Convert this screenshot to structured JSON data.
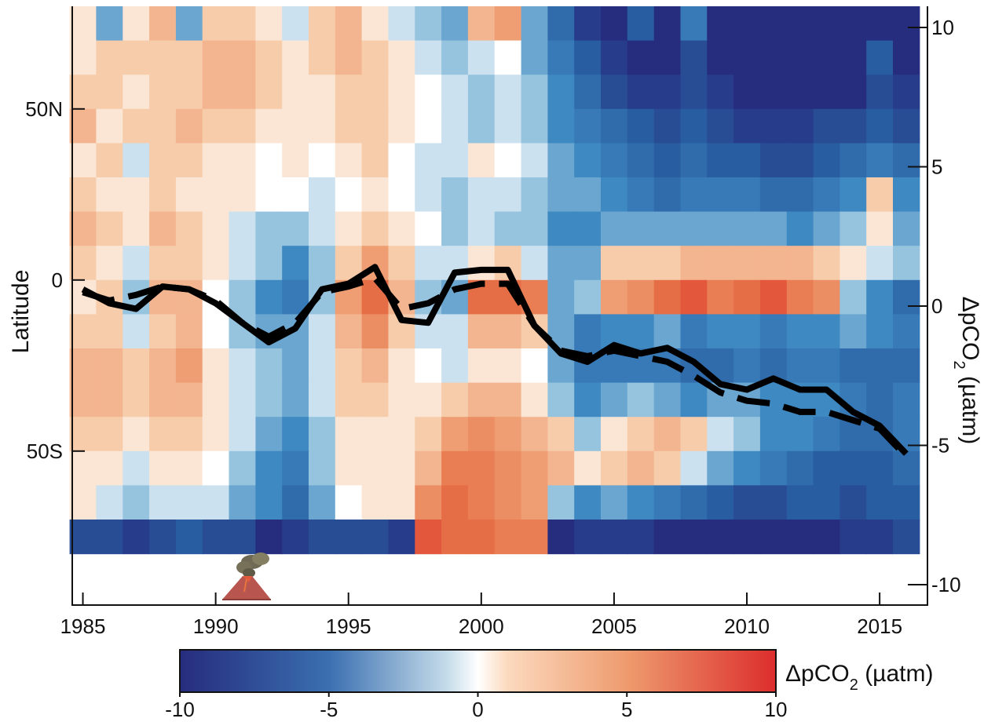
{
  "chart_data": {
    "type": "heatmap",
    "title": "",
    "heatmap": {
      "years": [
        1985,
        1986,
        1987,
        1988,
        1989,
        1990,
        1991,
        1992,
        1993,
        1994,
        1995,
        1996,
        1997,
        1998,
        1999,
        2000,
        2001,
        2002,
        2003,
        2004,
        2005,
        2006,
        2007,
        2008,
        2009,
        2010,
        2011,
        2012,
        2013,
        2014,
        2015,
        2016
      ],
      "lat_bands": [
        "70N-80N",
        "60N-70N",
        "50N-60N",
        "40N-50N",
        "30N-40N",
        "20N-30N",
        "10N-20N",
        "0-10N",
        "10S-0",
        "20S-10S",
        "30S-20S",
        "40S-30S",
        "50S-40S",
        "60S-50S",
        "70S-60S",
        "80S-70S"
      ],
      "note_value_range": [
        -10,
        10
      ],
      "values": [
        [
          1,
          -3,
          1,
          3,
          -3,
          2,
          2,
          1,
          -1,
          2,
          3,
          1,
          -1,
          -2,
          -3,
          3,
          4,
          -3,
          -6,
          -9,
          -10,
          -7,
          -10,
          -5,
          -10,
          -10,
          -10,
          -10,
          -10,
          -10,
          -10,
          -10
        ],
        [
          1,
          2,
          2,
          2,
          2,
          3,
          3,
          2,
          1,
          2,
          3,
          2,
          1,
          -1,
          -2,
          -1,
          0,
          -3,
          -5,
          -7,
          -9,
          -10,
          -10,
          -8,
          -10,
          -10,
          -10,
          -10,
          -10,
          -10,
          -7,
          -10
        ],
        [
          2,
          2,
          1,
          2,
          2,
          3,
          3,
          2,
          1,
          1,
          2,
          2,
          1,
          0,
          -1,
          -2,
          -1,
          -2,
          -4,
          -6,
          -8,
          -9,
          -9,
          -8,
          -9,
          -10,
          -10,
          -10,
          -10,
          -10,
          -8,
          -9
        ],
        [
          3,
          1,
          2,
          2,
          3,
          2,
          2,
          1,
          1,
          1,
          2,
          2,
          1,
          0,
          -1,
          -2,
          -1,
          -2,
          -4,
          -5,
          -6,
          -7,
          -8,
          -7,
          -8,
          -9,
          -9,
          -9,
          -8,
          -8,
          -7,
          -8
        ],
        [
          1,
          2,
          -1,
          2,
          2,
          1,
          1,
          0,
          1,
          0,
          1,
          2,
          0,
          -1,
          -1,
          1,
          0,
          -1,
          -3,
          -4,
          -5,
          -6,
          -7,
          -6,
          -7,
          -7,
          -8,
          -8,
          -7,
          -6,
          -5,
          -6
        ],
        [
          2,
          1,
          1,
          2,
          1,
          1,
          1,
          0,
          0,
          -1,
          0,
          1,
          0,
          -1,
          -2,
          -1,
          -1,
          -2,
          -3,
          -3,
          -4,
          -5,
          -6,
          -5,
          -5,
          -5,
          -6,
          -6,
          -5,
          -4,
          2,
          -4
        ],
        [
          3,
          2,
          1,
          3,
          2,
          1,
          -1,
          -2,
          -2,
          -1,
          1,
          2,
          1,
          0,
          -2,
          -1,
          -2,
          -2,
          -4,
          -4,
          -3,
          -3,
          -3,
          -3,
          -3,
          -3,
          -3,
          -4,
          -3,
          -2,
          1,
          -3
        ],
        [
          2,
          1,
          -1,
          2,
          2,
          1,
          -1,
          -2,
          -4,
          -2,
          2,
          4,
          2,
          -1,
          -1,
          1,
          2,
          -1,
          -3,
          -3,
          2,
          2,
          2,
          3,
          3,
          3,
          3,
          3,
          2,
          1,
          -1,
          -2
        ],
        [
          1,
          2,
          -2,
          3,
          3,
          0,
          -2,
          -4,
          -5,
          -2,
          4,
          7,
          3,
          -2,
          -3,
          7,
          7,
          6,
          -3,
          -2,
          4,
          5,
          7,
          8,
          6,
          7,
          8,
          6,
          5,
          -2,
          -4,
          -6
        ],
        [
          2,
          2,
          -1,
          2,
          3,
          0,
          -2,
          -3,
          -3,
          -1,
          3,
          5,
          2,
          -1,
          -1,
          3,
          3,
          2,
          -3,
          -5,
          -4,
          -4,
          -3,
          -5,
          -4,
          -4,
          -5,
          -4,
          -4,
          -3,
          -4,
          -5
        ],
        [
          3,
          3,
          2,
          3,
          4,
          1,
          -1,
          -2,
          -3,
          -1,
          2,
          3,
          1,
          0,
          -1,
          1,
          1,
          0,
          -3,
          -5,
          -5,
          -5,
          -5,
          -6,
          -6,
          -5,
          -6,
          -5,
          -5,
          -6,
          -6,
          -6
        ],
        [
          3,
          3,
          2,
          3,
          3,
          1,
          -1,
          -2,
          -3,
          -1,
          2,
          2,
          1,
          1,
          2,
          3,
          3,
          1,
          -2,
          -4,
          -3,
          -2,
          -3,
          -4,
          -3,
          -3,
          -4,
          -4,
          -4,
          -5,
          -6,
          -5
        ],
        [
          2,
          2,
          1,
          2,
          2,
          1,
          -1,
          -3,
          -4,
          -2,
          1,
          1,
          1,
          2,
          4,
          5,
          4,
          3,
          2,
          -2,
          1,
          2,
          3,
          2,
          -1,
          -2,
          -4,
          -4,
          -5,
          -6,
          -6,
          -5
        ],
        [
          1,
          1,
          -1,
          1,
          1,
          0,
          -2,
          -4,
          -5,
          -2,
          1,
          1,
          1,
          3,
          6,
          6,
          5,
          4,
          3,
          1,
          2,
          3,
          2,
          -1,
          -3,
          -4,
          -5,
          -6,
          -7,
          -7,
          -7,
          -6
        ],
        [
          1,
          -1,
          -2,
          -1,
          -1,
          -1,
          -3,
          -4,
          -6,
          -3,
          0,
          1,
          1,
          5,
          7,
          6,
          5,
          4,
          -2,
          -4,
          -3,
          -4,
          -5,
          -6,
          -7,
          -8,
          -8,
          -7,
          -7,
          -8,
          -7,
          -7
        ],
        [
          -8,
          -8,
          -9,
          -8,
          -7,
          -8,
          -8,
          -10,
          -9,
          -8,
          -8,
          -8,
          -9,
          8,
          7,
          7,
          6,
          6,
          -10,
          -9,
          -9,
          -9,
          -10,
          -10,
          -10,
          -10,
          -10,
          -10,
          -10,
          -9,
          -9,
          -8
        ]
      ]
    },
    "series": [
      {
        "style": "solid",
        "x": [
          1985,
          1986,
          1987,
          1988,
          1989,
          1990,
          1991,
          1992,
          1993,
          1994,
          1995,
          1996,
          1997,
          1998,
          1999,
          2000,
          2001,
          2002,
          2003,
          2004,
          2005,
          2006,
          2007,
          2008,
          2009,
          2010,
          2011,
          2012,
          2013,
          2014,
          2015,
          2016
        ],
        "y": [
          0.6,
          0.1,
          -0.1,
          0.7,
          0.6,
          0.1,
          -0.6,
          -1.3,
          -0.8,
          0.6,
          0.8,
          1.4,
          -0.5,
          -0.6,
          1.2,
          1.3,
          1.3,
          -0.7,
          -1.7,
          -2.0,
          -1.4,
          -1.7,
          -1.5,
          -2.0,
          -2.8,
          -3.0,
          -2.6,
          -3.0,
          -3.0,
          -3.8,
          -4.3,
          -5.3
        ]
      },
      {
        "style": "dashed",
        "x": [
          1985,
          1986,
          1987,
          1988,
          1989,
          1990,
          1991,
          1992,
          1993,
          1994,
          1995,
          1996,
          1997,
          1998,
          1999,
          2000,
          2001,
          2002,
          2003,
          2004,
          2005,
          2006,
          2007,
          2008,
          2009,
          2010,
          2011,
          2012,
          2013,
          2014,
          2015,
          2016
        ],
        "y": [
          0.5,
          0.2,
          0.4,
          0.7,
          0.6,
          0.2,
          -0.6,
          -1.1,
          -0.6,
          0.5,
          0.7,
          1.0,
          -0.1,
          0.1,
          0.6,
          0.8,
          0.8,
          -0.7,
          -1.6,
          -1.8,
          -1.6,
          -1.8,
          -2.0,
          -2.5,
          -3.1,
          -3.4,
          -3.5,
          -3.8,
          -3.8,
          -4.1,
          -4.4,
          -5.4
        ]
      }
    ],
    "xlabel": "",
    "ylabel": "Latitude",
    "y2label": "ΔpCO2 (µatm)",
    "xlim": [
      1984.6,
      2016.8
    ],
    "ylim_lat": [
      -95,
      80
    ],
    "y2lim": [
      -10.3,
      10.3
    ],
    "x_ticks": [
      "1985",
      "1990",
      "1995",
      "2000",
      "2005",
      "2010",
      "2015"
    ],
    "y_ticks_left": [
      "50N",
      "0",
      "50S"
    ],
    "y_ticks_right": [
      "10",
      "5",
      "0",
      "-5",
      "-10"
    ],
    "colorbar": {
      "label": "ΔpCO2 (µatm)",
      "range": [
        -10,
        10
      ],
      "ticks": [
        "-10",
        "-5",
        "0",
        "5",
        "10"
      ]
    },
    "annotation": "volcano-icon",
    "annotation_year": 1991,
    "grid": false,
    "colors": {
      "low": "#262c7e",
      "mid_low": "#2a7ab9",
      "mid": "#ffffff",
      "mid_high": "#f0a17b",
      "high": "#dc2d2c",
      "line": "#000000"
    }
  }
}
